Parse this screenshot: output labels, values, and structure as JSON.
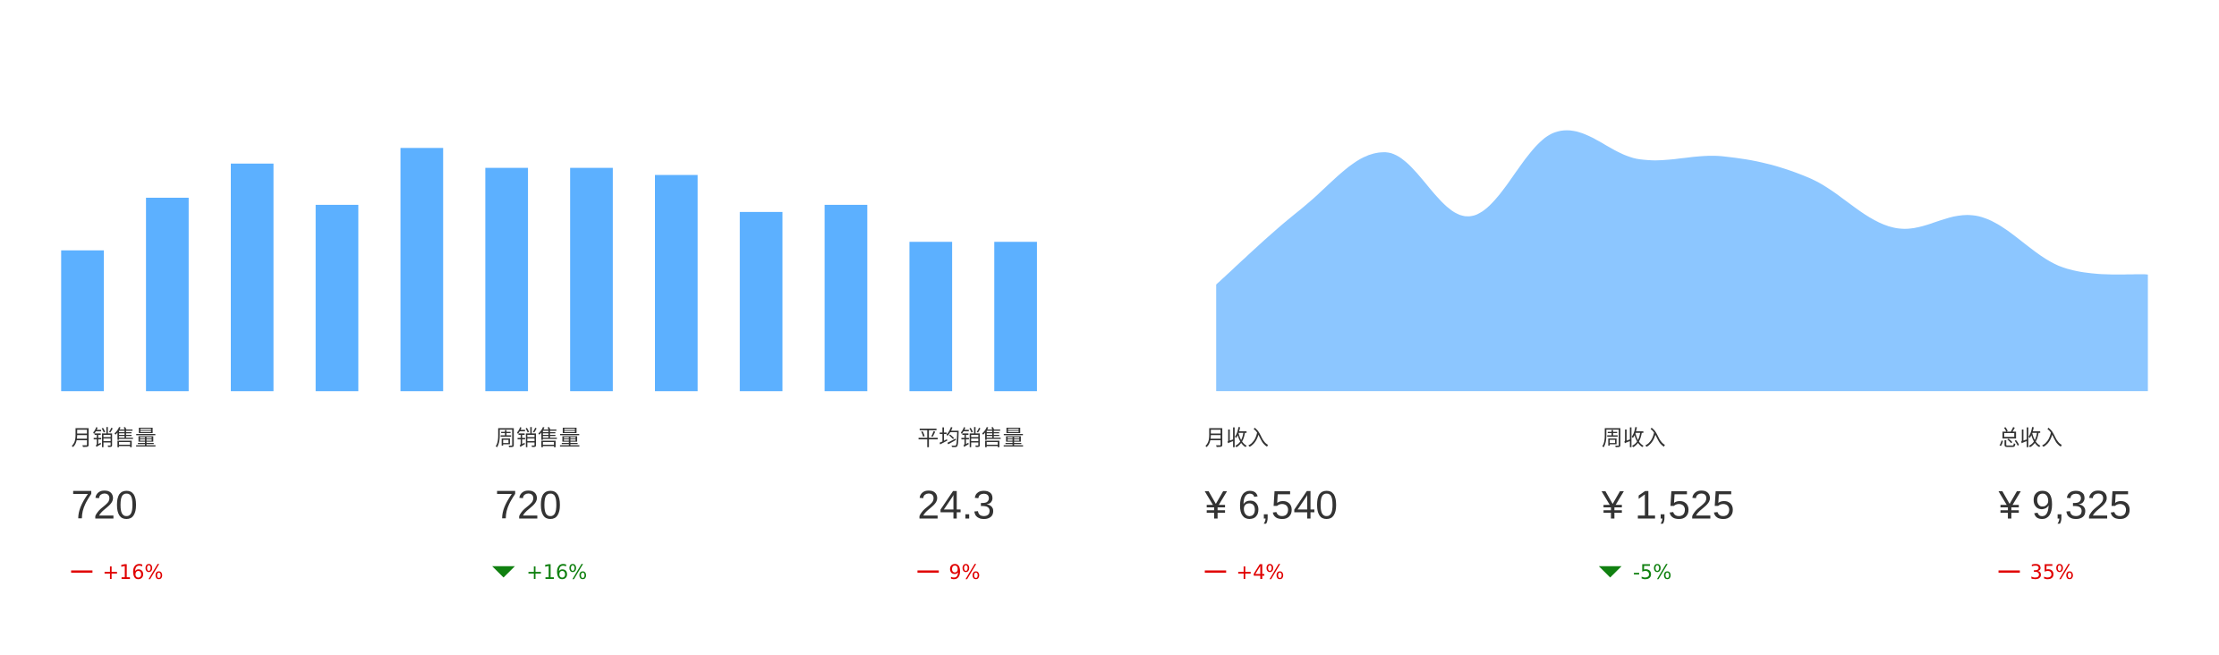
{
  "chart_data": [
    {
      "type": "bar",
      "color": "#5cb0ff",
      "ylim": [
        0,
        180
      ],
      "values": [
        99,
        136,
        160,
        131,
        171,
        157,
        157,
        152,
        126,
        131,
        105,
        105
      ]
    },
    {
      "type": "area",
      "color": "#8cc6ff",
      "ylim": [
        0,
        180
      ],
      "values": [
        75,
        128,
        168,
        123,
        182,
        163,
        165,
        150,
        115,
        123,
        87,
        82
      ]
    }
  ],
  "stats": [
    {
      "label": "月销售量",
      "value": "720",
      "change": "+16%",
      "trend": "flat",
      "color": "#e00000"
    },
    {
      "label": "周销售量",
      "value": "720",
      "change": "+16%",
      "trend": "down",
      "color": "#108010"
    },
    {
      "label": "平均销售量",
      "value": "24.3",
      "change": "9%",
      "trend": "flat",
      "color": "#e00000"
    },
    {
      "label": "月收入",
      "value": "¥ 6,540",
      "change": "+4%",
      "trend": "flat",
      "color": "#e00000"
    },
    {
      "label": "周收入",
      "value": "¥ 1,525",
      "change": "-5%",
      "trend": "down",
      "color": "#108010"
    },
    {
      "label": "总收入",
      "value": "¥ 9,325",
      "change": "35%",
      "trend": "flat",
      "color": "#e00000"
    }
  ]
}
